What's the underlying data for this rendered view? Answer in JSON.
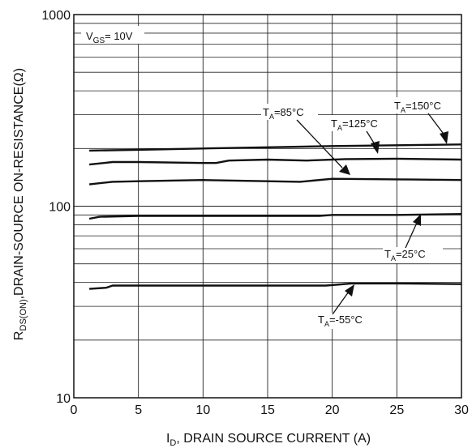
{
  "chart_data": {
    "type": "line",
    "xlabel": {
      "main": "I",
      "sub": "D",
      "rest": ", DRAIN SOURCE CURRENT (A)"
    },
    "ylabel": {
      "main": "R",
      "sub": "DS(ON)",
      "rest": ",DRAIN-SOURCE ON-RESISTANCE(Ω)"
    },
    "xlim": [
      0,
      30
    ],
    "ylim": [
      10,
      1000
    ],
    "y_scale": "log",
    "x_ticks": [
      "0",
      "5",
      "10",
      "15",
      "20",
      "25",
      "30"
    ],
    "y_ticks": [
      "10",
      "100",
      "1000"
    ],
    "grid": true,
    "condition": {
      "main": "V",
      "sub": "GS",
      "rest": "= 10V"
    },
    "series": [
      {
        "name": {
          "main": "T",
          "sub": "A",
          "rest": "=150°C"
        },
        "x": [
          1.2,
          5,
          10,
          15,
          20,
          25,
          30
        ],
        "y": [
          195,
          197,
          200,
          203,
          206,
          208,
          210
        ]
      },
      {
        "name": {
          "main": "T",
          "sub": "A",
          "rest": "=125°C"
        },
        "x": [
          1.2,
          3,
          5,
          10,
          11,
          12,
          15,
          18,
          21,
          25,
          30
        ],
        "y": [
          165,
          170,
          170,
          168,
          168,
          173,
          175,
          173,
          176,
          177,
          175
        ]
      },
      {
        "name": {
          "main": "T",
          "sub": "A",
          "rest": "=85°C"
        },
        "x": [
          1.2,
          3,
          5,
          10,
          15,
          17.5,
          20,
          25,
          30
        ],
        "y": [
          130,
          134,
          135,
          137,
          135,
          134,
          139,
          138,
          137
        ]
      },
      {
        "name": {
          "main": "T",
          "sub": "A",
          "rest": "=25°C"
        },
        "x": [
          1.2,
          2,
          5,
          10,
          15,
          19,
          20,
          25,
          30
        ],
        "y": [
          86,
          88,
          89,
          89,
          89,
          89,
          90,
          90,
          91
        ]
      },
      {
        "name": {
          "main": "T",
          "sub": "A",
          "rest": "=-55°C"
        },
        "x": [
          1.2,
          2.5,
          3,
          10,
          19.5,
          21.5,
          25,
          30
        ],
        "y": [
          37,
          37.5,
          38.5,
          38.5,
          38.5,
          39.5,
          39.5,
          39.2
        ]
      }
    ]
  }
}
